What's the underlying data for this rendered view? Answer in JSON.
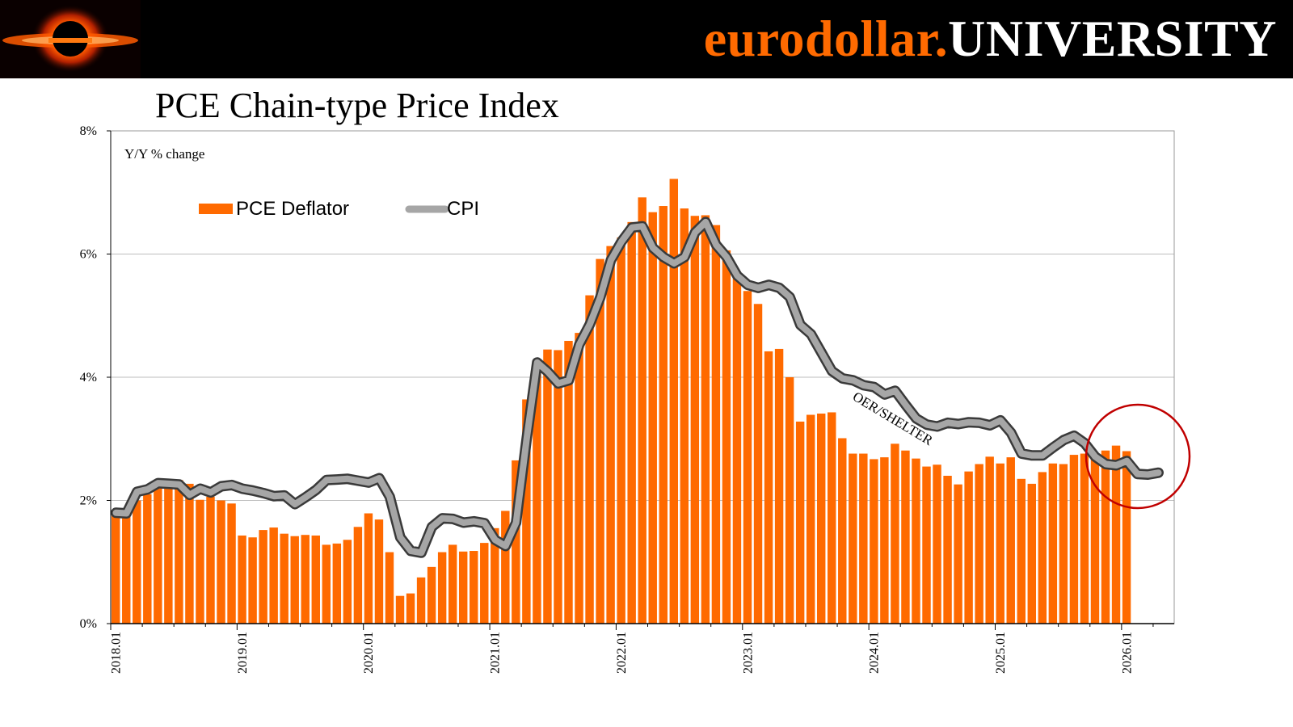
{
  "brand": {
    "part1": "eurodollar.",
    "part2": "UNIVERSITY",
    "logo_name": "black-hole-logo"
  },
  "chart_data": {
    "type": "bar+line",
    "title": "PCE Chain-type Price Index",
    "subtitle": "Y/Y % change",
    "ylim": [
      0,
      8
    ],
    "yticks": [
      0,
      2,
      4,
      6,
      8
    ],
    "ytick_labels": [
      "0%",
      "2%",
      "4%",
      "6%",
      "8%"
    ],
    "xtick_labels": [
      "2018.01",
      "2019.01",
      "2020.01",
      "2021.01",
      "2022.01",
      "2023.01",
      "2024.01",
      "2025.01",
      "2026.01"
    ],
    "legend": [
      "PCE Deflator",
      "CPI"
    ],
    "legend_position": "top-left",
    "annotation": "OER/SHELTER",
    "start": "2018.01",
    "series": [
      {
        "name": "PCE Deflator",
        "type": "bar",
        "color": "#ff6a00",
        "values": [
          1.78,
          1.84,
          2.0,
          2.1,
          2.21,
          2.24,
          2.33,
          2.27,
          2.01,
          2.06,
          2.0,
          1.95,
          1.43,
          1.4,
          1.52,
          1.56,
          1.46,
          1.42,
          1.44,
          1.43,
          1.28,
          1.3,
          1.36,
          1.57,
          1.79,
          1.69,
          1.16,
          0.45,
          0.49,
          0.75,
          0.92,
          1.16,
          1.28,
          1.17,
          1.18,
          1.31,
          1.55,
          1.83,
          2.65,
          3.64,
          4.06,
          4.45,
          4.44,
          4.59,
          4.72,
          5.33,
          5.92,
          6.13,
          6.27,
          6.52,
          6.92,
          6.68,
          6.78,
          7.22,
          6.74,
          6.62,
          6.63,
          6.47,
          6.06,
          5.71,
          5.4,
          5.19,
          4.42,
          4.46,
          4.0,
          3.28,
          3.39,
          3.41,
          3.43,
          3.01,
          2.76,
          2.76,
          2.67,
          2.7,
          2.92,
          2.81,
          2.68,
          2.55,
          2.58,
          2.4,
          2.26,
          2.47,
          2.59,
          2.71,
          2.6,
          2.7,
          2.35,
          2.27,
          2.46,
          2.6,
          2.59,
          2.74,
          2.76,
          2.69,
          2.81,
          2.89,
          2.8
        ]
      },
      {
        "name": "CPI",
        "type": "line",
        "color": "#a6a6a6",
        "values": [
          1.8,
          1.79,
          2.14,
          2.18,
          2.28,
          2.27,
          2.26,
          2.09,
          2.19,
          2.13,
          2.23,
          2.25,
          2.19,
          2.16,
          2.12,
          2.07,
          2.08,
          1.94,
          2.05,
          2.17,
          2.33,
          2.34,
          2.35,
          2.32,
          2.29,
          2.36,
          2.06,
          1.4,
          1.18,
          1.15,
          1.57,
          1.71,
          1.7,
          1.64,
          1.66,
          1.63,
          1.36,
          1.26,
          1.64,
          3.0,
          4.24,
          4.09,
          3.9,
          3.95,
          4.53,
          4.86,
          5.3,
          5.9,
          6.2,
          6.43,
          6.45,
          6.1,
          5.95,
          5.85,
          5.95,
          6.35,
          6.52,
          6.15,
          5.95,
          5.65,
          5.5,
          5.45,
          5.5,
          5.45,
          5.3,
          4.85,
          4.7,
          4.4,
          4.1,
          3.98,
          3.95,
          3.87,
          3.84,
          3.72,
          3.78,
          3.55,
          3.33,
          3.23,
          3.2,
          3.26,
          3.24,
          3.27,
          3.26,
          3.22,
          3.3,
          3.1,
          2.76,
          2.73,
          2.73,
          2.86,
          2.98,
          3.05,
          2.93,
          2.71,
          2.59,
          2.57,
          2.64,
          2.43,
          2.42,
          2.45
        ]
      }
    ]
  }
}
